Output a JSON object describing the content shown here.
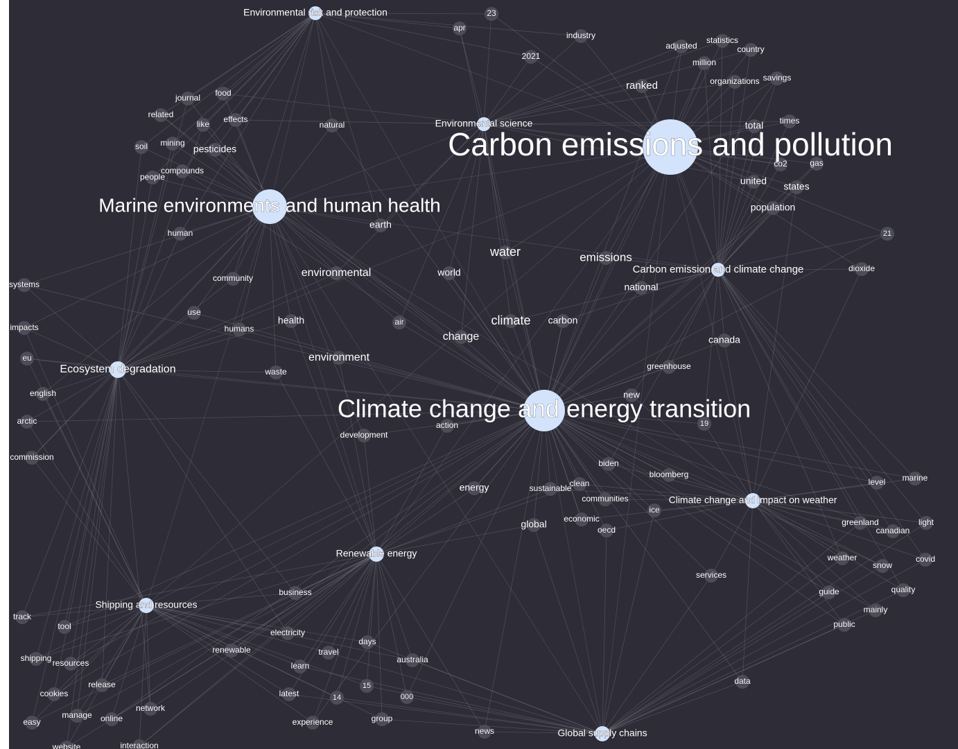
{
  "nodes": [
    {
      "label": "Carbon emissions and pollution"
    },
    {
      "label": "Climate change and energy transition"
    },
    {
      "label": "Marine environments and human health"
    },
    {
      "label": "Environmental risk and protection"
    },
    {
      "label": "Environmental science"
    },
    {
      "label": "Carbon emission and climate change"
    },
    {
      "label": "Ecosystem degradation"
    },
    {
      "label": "Climate change and impact on weather"
    },
    {
      "label": "Renewable energy"
    },
    {
      "label": "Shipping and resources"
    },
    {
      "label": "Global supply chains"
    },
    {
      "label": "23"
    },
    {
      "label": "apr"
    },
    {
      "label": "industry"
    },
    {
      "label": "2021"
    },
    {
      "label": "adjusted"
    },
    {
      "label": "statistics"
    },
    {
      "label": "country"
    },
    {
      "label": "million"
    },
    {
      "label": "ranked"
    },
    {
      "label": "organizations"
    },
    {
      "label": "savings"
    },
    {
      "label": "journal"
    },
    {
      "label": "food"
    },
    {
      "label": "related"
    },
    {
      "label": "like"
    },
    {
      "label": "effects"
    },
    {
      "label": "natural"
    },
    {
      "label": "soil"
    },
    {
      "label": "mining"
    },
    {
      "label": "pesticides"
    },
    {
      "label": "total"
    },
    {
      "label": "times"
    },
    {
      "label": "compounds"
    },
    {
      "label": "people"
    },
    {
      "label": "co2"
    },
    {
      "label": "gas"
    },
    {
      "label": "united"
    },
    {
      "label": "states"
    },
    {
      "label": "population"
    },
    {
      "label": "earth"
    },
    {
      "label": "human"
    },
    {
      "label": "21"
    },
    {
      "label": "water"
    },
    {
      "label": "emissions"
    },
    {
      "label": "systems"
    },
    {
      "label": "community"
    },
    {
      "label": "environmental"
    },
    {
      "label": "world"
    },
    {
      "label": "dioxide"
    },
    {
      "label": "national"
    },
    {
      "label": "use"
    },
    {
      "label": "impacts"
    },
    {
      "label": "health"
    },
    {
      "label": "humans"
    },
    {
      "label": "air"
    },
    {
      "label": "climate"
    },
    {
      "label": "carbon"
    },
    {
      "label": "change"
    },
    {
      "label": "canada"
    },
    {
      "label": "eu"
    },
    {
      "label": "environment"
    },
    {
      "label": "waste"
    },
    {
      "label": "greenhouse"
    },
    {
      "label": "english"
    },
    {
      "label": "new"
    },
    {
      "label": "action"
    },
    {
      "label": "19"
    },
    {
      "label": "development"
    },
    {
      "label": "arctic"
    },
    {
      "label": "commission"
    },
    {
      "label": "biden"
    },
    {
      "label": "bloomberg"
    },
    {
      "label": "clean"
    },
    {
      "label": "sustainable"
    },
    {
      "label": "energy"
    },
    {
      "label": "level"
    },
    {
      "label": "marine"
    },
    {
      "label": "communities"
    },
    {
      "label": "ice"
    },
    {
      "label": "global"
    },
    {
      "label": "economic"
    },
    {
      "label": "oecd"
    },
    {
      "label": "greenland"
    },
    {
      "label": "canadian"
    },
    {
      "label": "light"
    },
    {
      "label": "weather"
    },
    {
      "label": "snow"
    },
    {
      "label": "covid"
    },
    {
      "label": "services"
    },
    {
      "label": "guide"
    },
    {
      "label": "quality"
    },
    {
      "label": "business"
    },
    {
      "label": "mainly"
    },
    {
      "label": "public"
    },
    {
      "label": "track"
    },
    {
      "label": "tool"
    },
    {
      "label": "electricity"
    },
    {
      "label": "days"
    },
    {
      "label": "renewable"
    },
    {
      "label": "travel"
    },
    {
      "label": "shipping"
    },
    {
      "label": "resources"
    },
    {
      "label": "australia"
    },
    {
      "label": "learn"
    },
    {
      "label": "data"
    },
    {
      "label": "release"
    },
    {
      "label": "15"
    },
    {
      "label": "cookies"
    },
    {
      "label": "latest"
    },
    {
      "label": "14"
    },
    {
      "label": "000"
    },
    {
      "label": "network"
    },
    {
      "label": "manage"
    },
    {
      "label": "online"
    },
    {
      "label": "group"
    },
    {
      "label": "easy"
    },
    {
      "label": "experience"
    },
    {
      "label": "news"
    },
    {
      "label": "website"
    },
    {
      "label": "interaction"
    }
  ]
}
